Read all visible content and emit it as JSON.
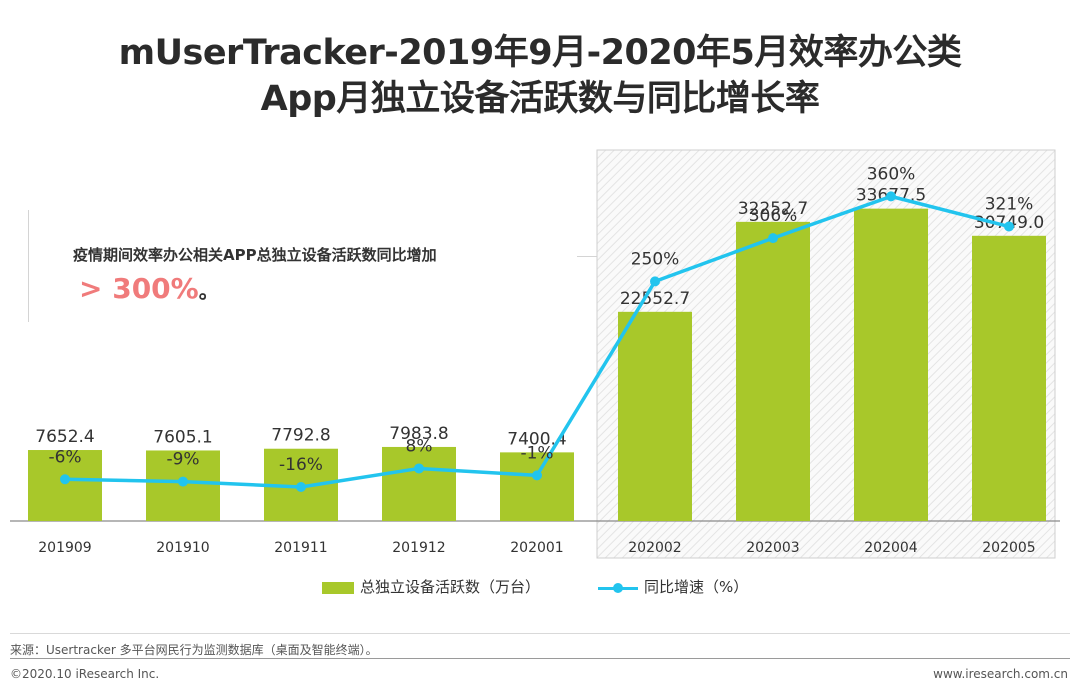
{
  "title": {
    "line1": "mUserTracker-2019年9月-2020年5月效率办公类",
    "line2": "App月独立设备活跃数与同比增长率"
  },
  "note": {
    "text": "疫情期间效率办公相关APP总独立设备活跃数同比增加",
    "highlight": "> 300%",
    "suffix": "。"
  },
  "chart_data": {
    "type": "bar",
    "categories": [
      "201909",
      "201910",
      "201911",
      "201912",
      "202001",
      "202002",
      "202003",
      "202004",
      "202005"
    ],
    "series": [
      {
        "name": "总独立设备活跃数（万台）",
        "type": "bar",
        "values": [
          7652.4,
          7605.1,
          7792.8,
          7983.8,
          7400.4,
          22552.7,
          32252.7,
          33677.5,
          30749.0
        ],
        "labels": [
          "7652.4",
          "7605.1",
          "7792.8",
          "7983.8",
          "7400.4",
          "22552.7",
          "32252.7",
          "33677.5",
          "30749.0"
        ]
      },
      {
        "name": "同比增速（%）",
        "type": "line",
        "values": [
          -6,
          -9,
          -16,
          8,
          -1,
          250,
          306,
          360,
          321
        ],
        "labels": [
          "-6%",
          "-9%",
          "-16%",
          "8%",
          "-1%",
          "250%",
          "306%",
          "360%",
          "321%"
        ]
      }
    ],
    "highlight_categories": [
      "202002",
      "202003",
      "202004",
      "202005"
    ],
    "bar_ylim": [
      0,
      40000
    ],
    "line_ylim": [
      -60,
      420
    ],
    "bar_color": "#a8c82a",
    "line_color": "#22c4ee",
    "grid": false
  },
  "legend": {
    "bar_label": "总独立设备活跃数（万台）",
    "line_label": "同比增速（%）"
  },
  "footer": {
    "source": "来源：Usertracker 多平台网民行为监测数据库（桌面及智能终端）。",
    "copyright": "©2020.10 iResearch Inc.",
    "website": "www.iresearch.com.cn"
  }
}
